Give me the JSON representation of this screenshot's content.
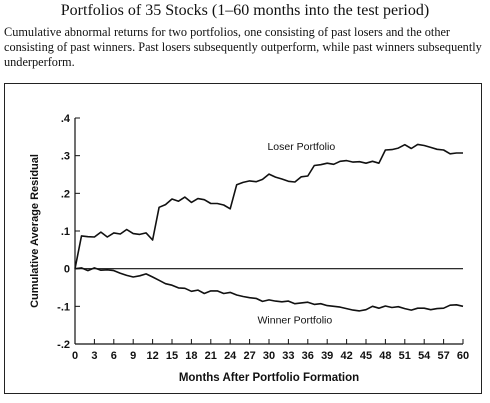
{
  "title": "Portfolios of 35 Stocks (1–60 months into the test period)",
  "caption": "Cumulative abnormal returns for two portfolios, one consisting of past losers and the other consisting of past winners. Past losers subsequently outperform, while past winners subsequently underperform.",
  "chart_data": {
    "type": "line",
    "xlabel": "Months After Portfolio Formation",
    "ylabel": "Cumulative Average Residual",
    "xlim": [
      0,
      60
    ],
    "ylim": [
      -0.2,
      0.4
    ],
    "x_ticks": [
      0,
      3,
      6,
      9,
      12,
      15,
      18,
      21,
      24,
      27,
      30,
      33,
      36,
      39,
      42,
      45,
      48,
      51,
      54,
      57,
      60
    ],
    "x_tick_labels": [
      "0",
      "3",
      "6",
      "9",
      "12",
      "15",
      "18",
      "21",
      "24",
      "27",
      "30",
      "33",
      "36",
      "39",
      "42",
      "45",
      "48",
      "51",
      "54",
      "57",
      "60"
    ],
    "y_ticks": [
      -0.2,
      -0.1,
      0,
      0.1,
      0.2,
      0.3,
      0.4
    ],
    "y_tick_labels": [
      "-.2",
      "-.1",
      "0",
      ".1",
      ".2",
      ".3",
      ".4"
    ],
    "zero_line": true,
    "grid": false,
    "series": [
      {
        "name": "Loser Portfolio",
        "x": [
          0,
          1,
          2,
          3,
          4,
          5,
          6,
          7,
          8,
          9,
          10,
          11,
          12,
          13,
          14,
          15,
          16,
          17,
          18,
          19,
          20,
          21,
          22,
          23,
          24,
          25,
          26,
          27,
          28,
          29,
          30,
          31,
          32,
          33,
          34,
          35,
          36,
          37,
          38,
          39,
          40,
          41,
          42,
          43,
          44,
          45,
          46,
          47,
          48,
          49,
          50,
          51,
          52,
          53,
          54,
          55,
          56,
          57,
          58,
          59,
          60
        ],
        "values": [
          0,
          0.087,
          0.085,
          0.084,
          0.097,
          0.084,
          0.095,
          0.092,
          0.104,
          0.093,
          0.091,
          0.095,
          0.076,
          0.163,
          0.17,
          0.185,
          0.179,
          0.19,
          0.176,
          0.186,
          0.183,
          0.173,
          0.173,
          0.169,
          0.159,
          0.223,
          0.229,
          0.233,
          0.231,
          0.237,
          0.251,
          0.243,
          0.238,
          0.232,
          0.23,
          0.244,
          0.246,
          0.274,
          0.276,
          0.28,
          0.277,
          0.285,
          0.287,
          0.283,
          0.284,
          0.28,
          0.285,
          0.28,
          0.315,
          0.316,
          0.32,
          0.329,
          0.319,
          0.33,
          0.327,
          0.322,
          0.317,
          0.315,
          0.305,
          0.307,
          0.307
        ]
      },
      {
        "name": "Winner Portfolio",
        "x": [
          0,
          1,
          2,
          3,
          4,
          5,
          6,
          7,
          8,
          9,
          10,
          11,
          12,
          13,
          14,
          15,
          16,
          17,
          18,
          19,
          20,
          21,
          22,
          23,
          24,
          25,
          26,
          27,
          28,
          29,
          30,
          31,
          32,
          33,
          34,
          35,
          36,
          37,
          38,
          39,
          40,
          41,
          42,
          43,
          44,
          45,
          46,
          47,
          48,
          49,
          50,
          51,
          52,
          53,
          54,
          55,
          56,
          57,
          58,
          59,
          60
        ],
        "values": [
          0,
          0.002,
          -0.005,
          0.002,
          -0.004,
          -0.003,
          -0.005,
          -0.012,
          -0.018,
          -0.022,
          -0.019,
          -0.014,
          -0.022,
          -0.031,
          -0.04,
          -0.044,
          -0.051,
          -0.052,
          -0.06,
          -0.057,
          -0.066,
          -0.059,
          -0.059,
          -0.066,
          -0.063,
          -0.07,
          -0.074,
          -0.077,
          -0.079,
          -0.087,
          -0.083,
          -0.086,
          -0.088,
          -0.086,
          -0.093,
          -0.091,
          -0.089,
          -0.095,
          -0.093,
          -0.098,
          -0.1,
          -0.102,
          -0.106,
          -0.11,
          -0.112,
          -0.109,
          -0.1,
          -0.105,
          -0.099,
          -0.103,
          -0.101,
          -0.106,
          -0.11,
          -0.105,
          -0.105,
          -0.109,
          -0.106,
          -0.105,
          -0.097,
          -0.096,
          -0.1
        ]
      }
    ],
    "series_labels": [
      {
        "text": "Loser Portfolio",
        "at_x": 35,
        "at_y": 0.315
      },
      {
        "text": "Winner Portfolio",
        "at_x": 34,
        "at_y": -0.145
      }
    ]
  }
}
